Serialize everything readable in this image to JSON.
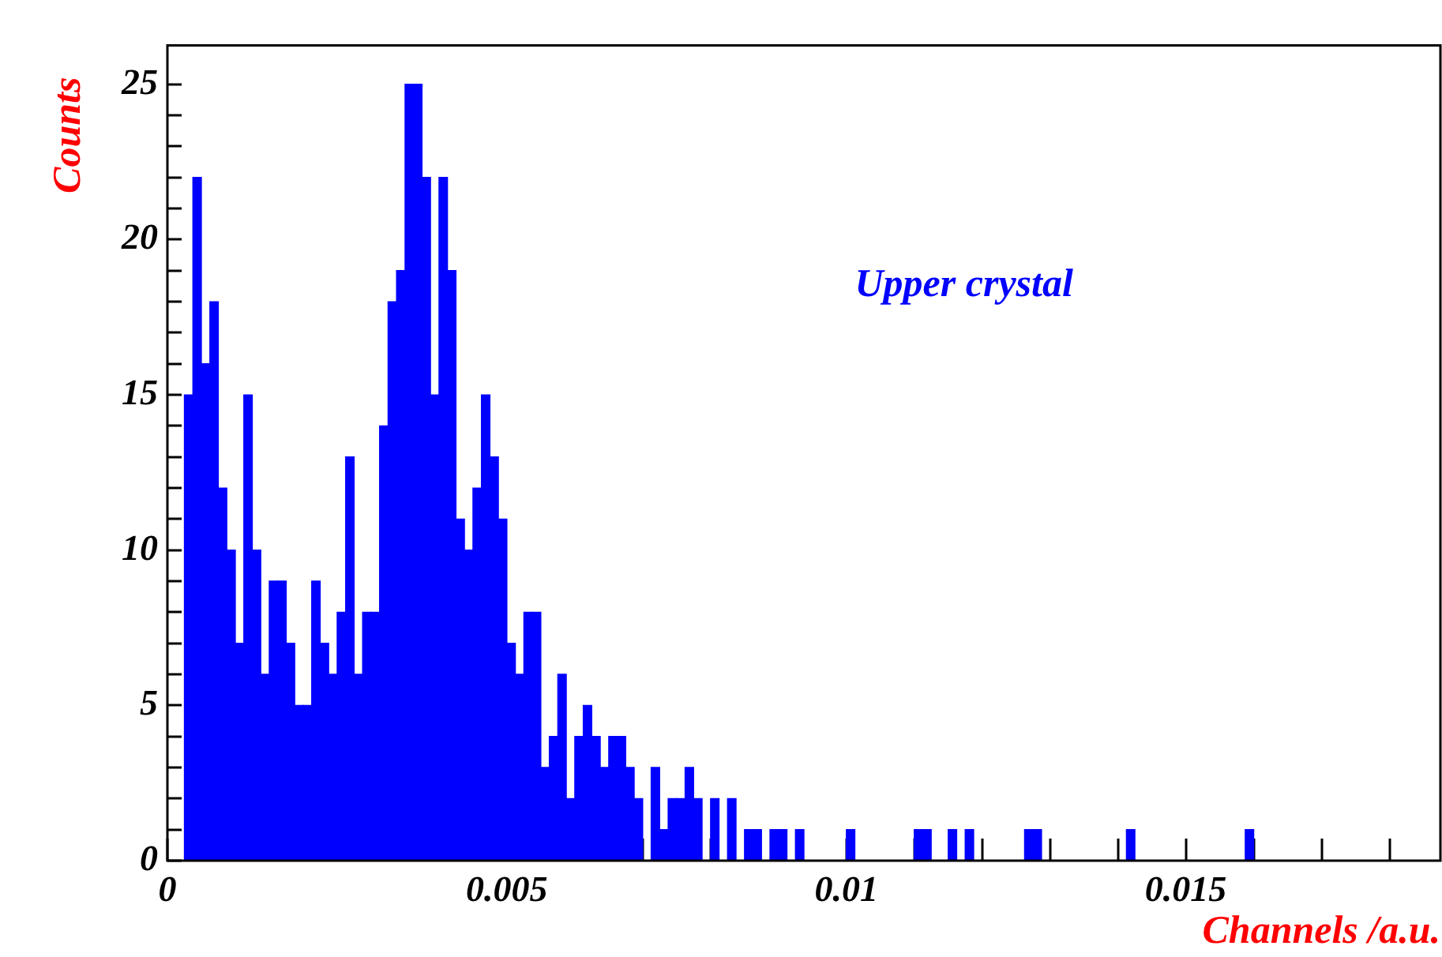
{
  "chart_data": {
    "type": "histogram",
    "xlabel": "Channels /a.u.",
    "ylabel": "Counts",
    "annotations": [
      "Upper crystal"
    ],
    "color": "#0000ff",
    "bins": [
      0,
      0.000125,
      0.00025,
      0.000375,
      0.0005,
      0.000625,
      0.00075,
      0.000875,
      0.001,
      0.001125,
      0.00125,
      0.001375,
      0.0015,
      0.001625,
      0.00175,
      0.001875,
      0.002,
      0.002125,
      0.00225,
      0.002375,
      0.0025,
      0.002625,
      0.00275,
      0.002875,
      0.003,
      0.003125,
      0.00325,
      0.003375,
      0.0035,
      0.003625,
      0.00375,
      0.003875,
      0.004,
      0.004125,
      0.00425,
      0.004375,
      0.0045,
      0.004625,
      0.00475,
      0.004875,
      0.005,
      0.005125,
      0.00525,
      0.005375,
      0.0055,
      0.005625,
      0.00575,
      0.005875,
      0.006,
      0.006125,
      0.00625,
      0.006375,
      0.0065,
      0.006625,
      0.00675,
      0.006875,
      0.007,
      0.007125,
      0.00725,
      0.007375,
      0.0075,
      0.007625,
      0.00775,
      0.007875,
      0.008,
      0.008125,
      0.00825,
      0.008375,
      0.0085,
      0.008625,
      0.00875,
      0.008875,
      0.009,
      0.009125,
      0.00925,
      0.009375,
      0.0095,
      0.009625,
      0.00975,
      0.009875,
      0.01,
      0.010125,
      0.01025,
      0.010375,
      0.0105,
      0.010625,
      0.01075,
      0.010875,
      0.011,
      0.011125,
      0.01125,
      0.011375,
      0.0115,
      0.011625,
      0.01175,
      0.011875,
      0.012,
      0.012125,
      0.01225,
      0.012375,
      0.0125,
      0.012625,
      0.01275,
      0.012875,
      0.013,
      0.013125,
      0.01325,
      0.013375,
      0.0135,
      0.013625,
      0.01375,
      0.013875,
      0.014,
      0.014125,
      0.01425,
      0.014375,
      0.0145,
      0.014625,
      0.01475,
      0.014875,
      0.015,
      0.015125,
      0.01525,
      0.015375,
      0.0155,
      0.015625,
      0.01575,
      0.015875,
      0.016,
      0.016125,
      0.01625,
      0.016375,
      0.0165,
      0.016625,
      0.01675,
      0.016875,
      0.017,
      0.017125,
      0.01725,
      0.017375,
      0.0175,
      0.017625,
      0.01775,
      0.017875,
      0.018,
      0.018125,
      0.01825,
      0.018375,
      0.0185,
      0.018625,
      0.01875
    ],
    "values": [
      0,
      0,
      15,
      22,
      16,
      18,
      12,
      10,
      7,
      15,
      10,
      6,
      9,
      9,
      7,
      5,
      5,
      9,
      7,
      6,
      8,
      13,
      6,
      8,
      8,
      14,
      18,
      19,
      25,
      25,
      22,
      15,
      22,
      19,
      11,
      10,
      12,
      15,
      13,
      11,
      7,
      6,
      8,
      8,
      3,
      4,
      6,
      2,
      4,
      5,
      4,
      3,
      4,
      4,
      3,
      2,
      0,
      3,
      1,
      2,
      2,
      3,
      2,
      0,
      2,
      0,
      2,
      0,
      1,
      1,
      0,
      1,
      1,
      0,
      1,
      0,
      0,
      0,
      0,
      0,
      1,
      0,
      0,
      0,
      0,
      0,
      0,
      0,
      1,
      1,
      0,
      0,
      1,
      0,
      1,
      0,
      0,
      0,
      0,
      0,
      0,
      1,
      1,
      0,
      0,
      0,
      0,
      0,
      0,
      0,
      0,
      0,
      0,
      1,
      0,
      0,
      0,
      0,
      0,
      0,
      0,
      0,
      0,
      0,
      0,
      0,
      0,
      1,
      0,
      0,
      0,
      0,
      0,
      0,
      0,
      0,
      0,
      0,
      0,
      0,
      0,
      0,
      0,
      0,
      0,
      0,
      0,
      0,
      0,
      0
    ],
    "xlim": [
      0,
      0.01875
    ],
    "xticks": [
      0,
      {
        "value": 0.001,
        "label": null
      },
      {
        "value": 0.002,
        "label": null
      },
      {
        "value": 0.003,
        "label": null
      },
      {
        "value": 0.004,
        "label": null
      },
      0.005,
      {
        "value": 0.006,
        "label": null
      },
      {
        "value": 0.007,
        "label": null
      },
      {
        "value": 0.008,
        "label": null
      },
      {
        "value": 0.009,
        "label": null
      },
      0.01,
      {
        "value": 0.011,
        "label": null
      },
      {
        "value": 0.012,
        "label": null
      },
      {
        "value": 0.013,
        "label": null
      },
      {
        "value": 0.014,
        "label": null
      },
      0.015,
      {
        "value": 0.016,
        "label": null
      },
      {
        "value": 0.017,
        "label": null
      },
      {
        "value": 0.018,
        "label": null
      }
    ],
    "ylim": [
      0,
      26.25
    ],
    "yticks": [
      0,
      {
        "value": 1,
        "label": null
      },
      {
        "value": 2,
        "label": null
      },
      {
        "value": 3,
        "label": null
      },
      {
        "value": 4,
        "label": null
      },
      5,
      {
        "value": 6,
        "label": null
      },
      {
        "value": 7,
        "label": null
      },
      {
        "value": 8,
        "label": null
      },
      {
        "value": 9,
        "label": null
      },
      10,
      {
        "value": 11,
        "label": null
      },
      {
        "value": 12,
        "label": null
      },
      {
        "value": 13,
        "label": null
      },
      {
        "value": 14,
        "label": null
      },
      15,
      {
        "value": 16,
        "label": null
      },
      {
        "value": 17,
        "label": null
      },
      {
        "value": 18,
        "label": null
      },
      {
        "value": 19,
        "label": null
      },
      20,
      {
        "value": 21,
        "label": null
      },
      {
        "value": 22,
        "label": null
      },
      {
        "value": 23,
        "label": null
      },
      {
        "value": 24,
        "label": null
      },
      25
    ],
    "grid": false,
    "legend": false
  }
}
